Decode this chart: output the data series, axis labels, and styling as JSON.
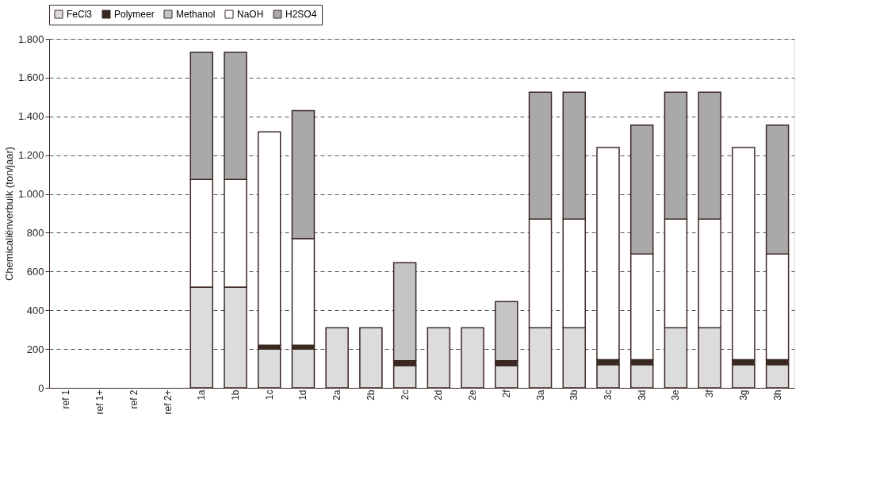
{
  "chart_data": {
    "type": "bar",
    "stacked": true,
    "ylabel": "Chemicaliënverbuik (ton/jaar)",
    "categories": [
      "ref 1",
      "ref 1+",
      "ref 2",
      "ref 2+",
      "1a",
      "1b",
      "1c",
      "1d",
      "2a",
      "2b",
      "2c",
      "2d",
      "2e",
      "2f",
      "3a",
      "3b",
      "3c",
      "3d",
      "3e",
      "3f",
      "3g",
      "3h"
    ],
    "series": [
      {
        "name": "FeCl3",
        "color": "#dcdcdc",
        "values": [
          null,
          null,
          null,
          null,
          520,
          520,
          200,
          200,
          310,
          310,
          115,
          310,
          310,
          115,
          310,
          310,
          120,
          120,
          310,
          310,
          120,
          120
        ]
      },
      {
        "name": "Polymeer",
        "color": "#3b2822",
        "values": [
          null,
          null,
          null,
          null,
          null,
          null,
          20,
          20,
          null,
          null,
          25,
          null,
          null,
          25,
          null,
          null,
          25,
          25,
          null,
          null,
          25,
          25
        ]
      },
      {
        "name": "Methanol",
        "color": "#c4c4c4",
        "values": [
          null,
          null,
          null,
          null,
          null,
          null,
          null,
          null,
          null,
          null,
          505,
          null,
          null,
          305,
          null,
          null,
          null,
          null,
          null,
          null,
          null,
          null
        ]
      },
      {
        "name": "NaOH",
        "color": "#ffffff",
        "values": [
          null,
          null,
          null,
          null,
          555,
          555,
          1100,
          550,
          null,
          null,
          null,
          null,
          null,
          null,
          560,
          560,
          1095,
          545,
          560,
          560,
          1095,
          545
        ]
      },
      {
        "name": "H2SO4",
        "color": "#a9a9a9",
        "values": [
          null,
          null,
          null,
          null,
          655,
          655,
          null,
          660,
          null,
          null,
          null,
          null,
          null,
          null,
          655,
          655,
          null,
          665,
          655,
          655,
          null,
          665
        ]
      }
    ],
    "ylim": [
      0,
      1800
    ],
    "yticks": [
      0,
      200,
      400,
      600,
      800,
      {
        "value": 1000,
        "label": "1.000"
      },
      {
        "value": 1200,
        "label": "1.200"
      },
      {
        "value": 1400,
        "label": "1.400"
      },
      {
        "value": 1600,
        "label": "1.600"
      },
      {
        "value": 1800,
        "label": "1.800"
      }
    ],
    "grid": "y",
    "legend": "top"
  }
}
